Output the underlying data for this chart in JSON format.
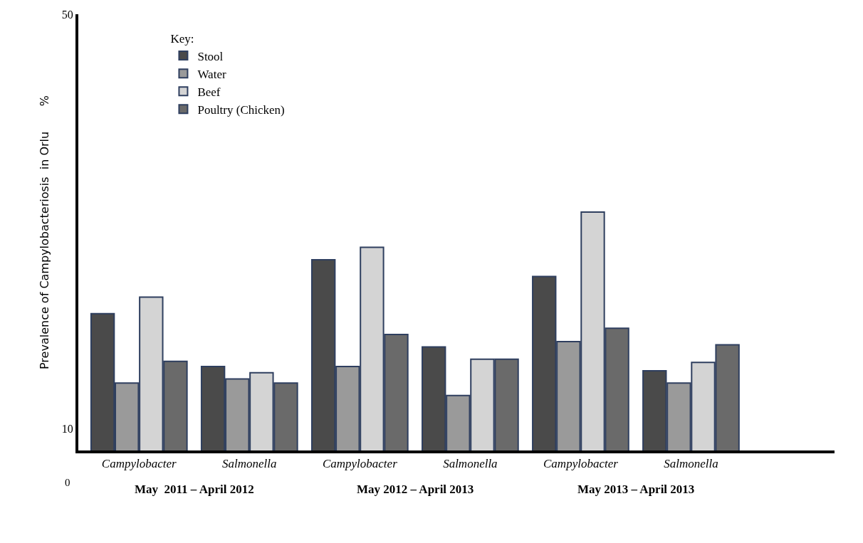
{
  "chart_data": {
    "type": "bar",
    "ylabel": "Prevalence of Campylobacteriosis  in Orlu       %",
    "legend_title": "Key:",
    "categories": [
      "Campylobacter",
      "Salmonella",
      "Campylobacter",
      "Salmonella",
      "Campylobacter",
      "Salmonella"
    ],
    "series": [
      {
        "name": "Stool",
        "color": "#4a4a4a",
        "values": [
          21.1,
          16.0,
          26.3,
          17.9,
          24.7,
          15.6
        ]
      },
      {
        "name": "Water",
        "color": "#9a9a9a",
        "values": [
          14.4,
          14.8,
          16.0,
          13.2,
          18.4,
          14.4
        ]
      },
      {
        "name": "Beef",
        "color": "#d4d4d4",
        "values": [
          22.7,
          15.4,
          27.5,
          16.7,
          30.9,
          16.4
        ]
      },
      {
        "name": "Poultry (Chicken)",
        "color": "#6a6a6a",
        "values": [
          16.5,
          14.4,
          19.1,
          16.7,
          19.7,
          18.1
        ]
      }
    ],
    "ylim": [
      7.9,
      50
    ],
    "yticks": [
      10,
      50
    ],
    "legend": "top left",
    "annotations": [
      "May  2011 – April 2012",
      "May 2012 – April 2013",
      "May 2013 – April 2013",
      "0"
    ]
  }
}
